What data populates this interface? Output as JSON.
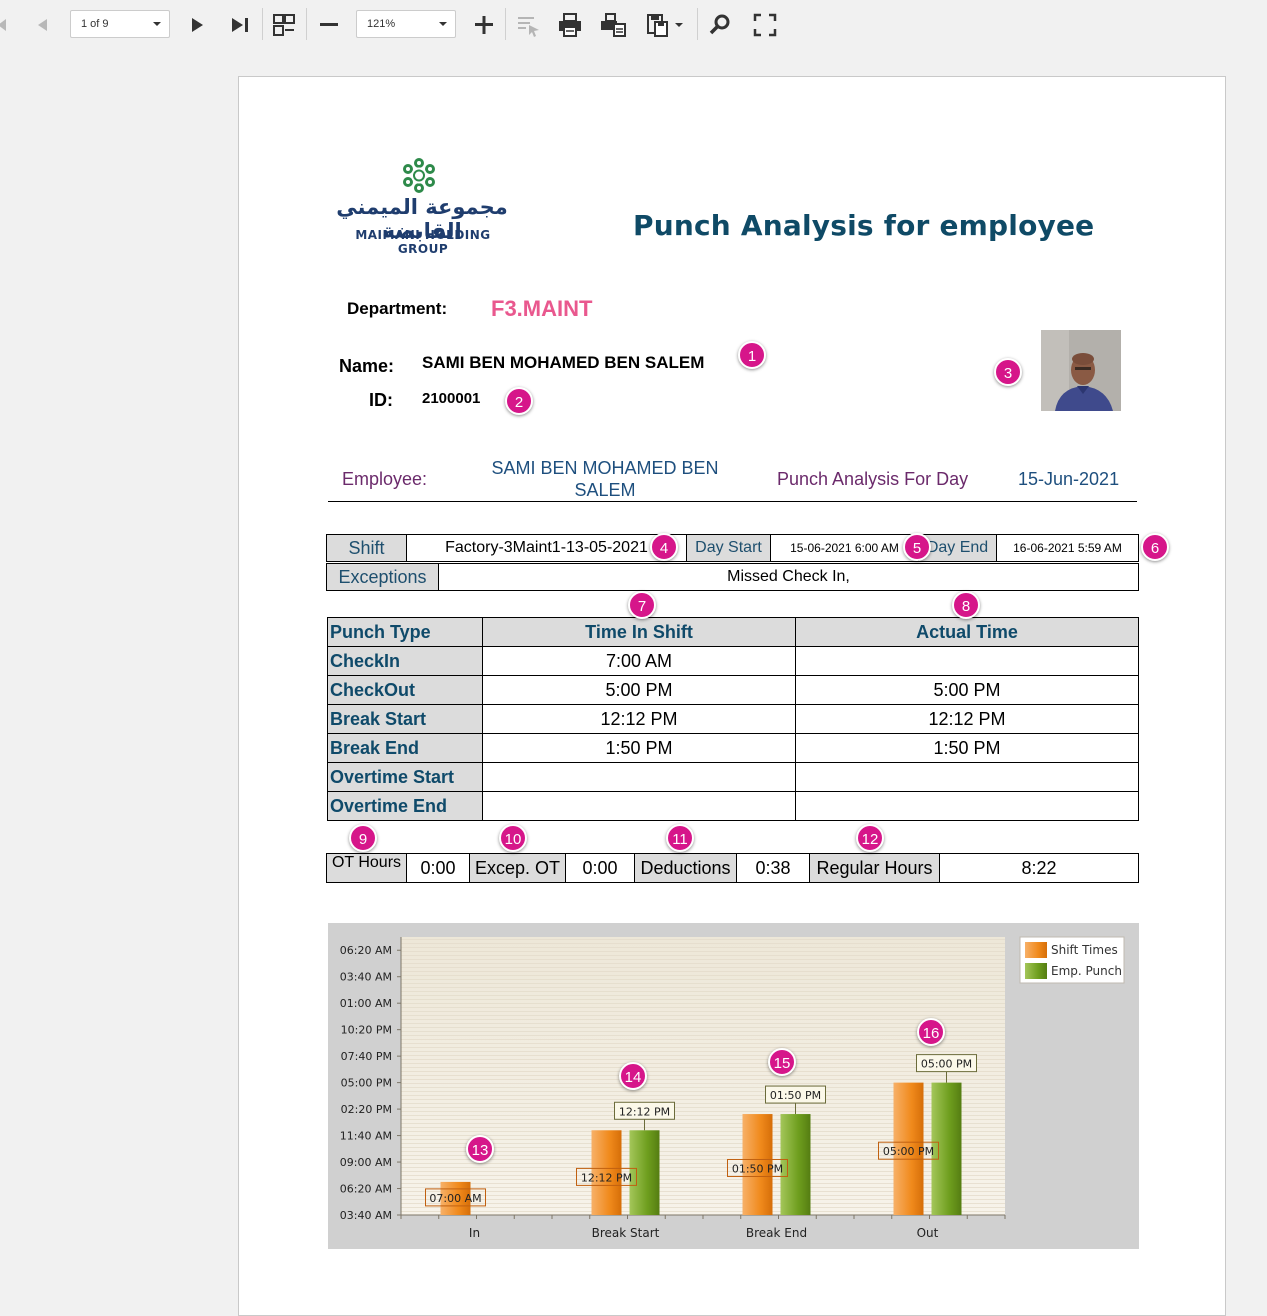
{
  "toolbar": {
    "page_indicator": "1 of 9",
    "zoom": "121%"
  },
  "report": {
    "title": "Punch Analysis for employee",
    "logo_arabic": "مجموعة الميمني القابضة",
    "logo_english": "MAIMANI HOLDING GROUP",
    "department_label": "Department:",
    "department_value": "F3.MAINT",
    "name_label": "Name:",
    "name_value": "SAMI BEN MOHAMED BEN SALEM",
    "id_label": "ID:",
    "id_value": "2100001",
    "employee_label": "Employee:",
    "employee_value_line1": "SAMI BEN MOHAMED BEN",
    "employee_value_line2": "SALEM",
    "analysis_label": "Punch Analysis For Day",
    "analysis_date": "15-Jun-2021"
  },
  "shift": {
    "shift_label": "Shift",
    "shift_value": "Factory-3Maint1-13-05-2021",
    "day_start_label": "Day Start",
    "day_start_value": "15-06-2021 6:00 AM",
    "day_end_label": "Day End",
    "day_end_value": "16-06-2021 5:59 AM",
    "exceptions_label": "Exceptions",
    "exceptions_value": "Missed Check In,"
  },
  "punches": {
    "headers": [
      "Punch Type",
      "Time In Shift",
      "Actual Time"
    ],
    "rows": [
      {
        "type": "CheckIn",
        "shift": "7:00 AM",
        "actual": ""
      },
      {
        "type": "CheckOut",
        "shift": "5:00 PM",
        "actual": "5:00 PM"
      },
      {
        "type": "Break Start",
        "shift": "12:12 PM",
        "actual": "12:12 PM"
      },
      {
        "type": "Break End",
        "shift": "1:50 PM",
        "actual": "1:50 PM"
      },
      {
        "type": "Overtime Start",
        "shift": "",
        "actual": ""
      },
      {
        "type": "Overtime End",
        "shift": "",
        "actual": ""
      }
    ]
  },
  "hours": {
    "ot_label": "OT Hours",
    "ot_value": "0:00",
    "excep_label": "Excep. OT",
    "excep_value": "0:00",
    "deductions_label": "Deductions",
    "deductions_value": "0:38",
    "regular_label": "Regular Hours",
    "regular_value": "8:22"
  },
  "badges": [
    "1",
    "2",
    "3",
    "4",
    "5",
    "6",
    "7",
    "8",
    "9",
    "10",
    "11",
    "12",
    "13",
    "14",
    "15",
    "16"
  ],
  "chart_data": {
    "type": "bar",
    "categories": [
      "In",
      "Break Start",
      "Break End",
      "Out"
    ],
    "series": [
      {
        "name": "Shift Times",
        "values": [
          "07:00 AM",
          "12:12 PM",
          "01:50 PM",
          "05:00 PM"
        ],
        "minutes": [
          420,
          732,
          830,
          1020
        ],
        "color": "#f08a1c"
      },
      {
        "name": "Emp. Punch",
        "values": [
          null,
          "12:12 PM",
          "01:50 PM",
          "05:00 PM"
        ],
        "minutes": [
          null,
          732,
          830,
          1020
        ],
        "color": "#6e9e1e"
      }
    ],
    "y_tick_labels": [
      "03:40 AM",
      "06:20 AM",
      "09:00 AM",
      "11:40 AM",
      "02:20 PM",
      "05:00 PM",
      "07:40 PM",
      "10:20 PM",
      "01:00 AM",
      "03:40 AM",
      "06:20 AM"
    ],
    "y_tick_minutes": [
      220,
      380,
      540,
      700,
      860,
      1020,
      1180,
      1340,
      1500,
      1660,
      1820
    ],
    "ylim_minutes": [
      220,
      1900
    ],
    "legend_position": "top-right"
  }
}
